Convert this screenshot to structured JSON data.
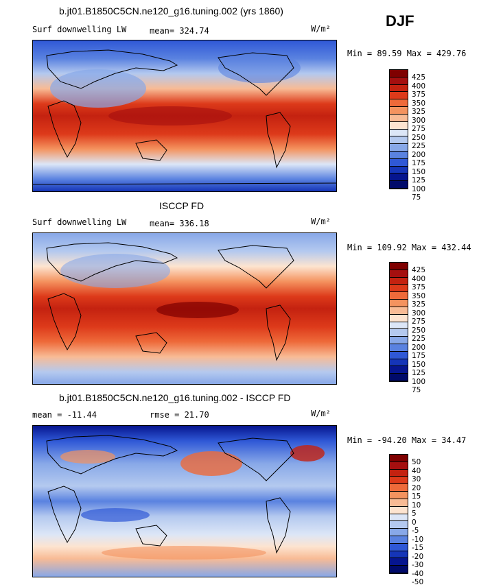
{
  "season": "DJF",
  "units": "W/m²",
  "panels": [
    {
      "title": "b.jt01.B1850C5CN.ne120_g16.tuning.002 (yrs 1860)",
      "label_left": "Surf downwelling LW",
      "label_mid": "mean=  324.74",
      "minmax": "Min =   89.59  Max =  429.76",
      "levels": [
        "425",
        "400",
        "375",
        "350",
        "325",
        "300",
        "275",
        "250",
        "225",
        "200",
        "175",
        "150",
        "125",
        "100",
        "75"
      ]
    },
    {
      "title": "ISCCP FD",
      "label_left": "Surf downwelling LW",
      "label_mid": "mean=  336.18",
      "minmax": "Min =  109.92  Max =  432.44",
      "levels": [
        "425",
        "400",
        "375",
        "350",
        "325",
        "300",
        "275",
        "250",
        "225",
        "200",
        "175",
        "150",
        "125",
        "100",
        "75"
      ]
    },
    {
      "title": "b.jt01.B1850C5CN.ne120_g16.tuning.002 - ISCCP FD",
      "label_left": "mean =  -11.44",
      "label_mid": "rmse =   21.70",
      "minmax": "Min =  -94.20  Max =   34.47",
      "levels": [
        "50",
        "40",
        "30",
        "20",
        "15",
        "10",
        "5",
        "0",
        "-5",
        "-10",
        "-15",
        "-20",
        "-30",
        "-40",
        "-50"
      ]
    }
  ],
  "palette": [
    "#7f0000",
    "#a50f0f",
    "#c42210",
    "#dd3a1a",
    "#ee6a3a",
    "#f4935f",
    "#f8bb95",
    "#fde4d0",
    "#dce6f7",
    "#b4c9ef",
    "#88a8e8",
    "#5a82e0",
    "#2f58d6",
    "#1535b8",
    "#06158f",
    "#000a6a"
  ]
}
